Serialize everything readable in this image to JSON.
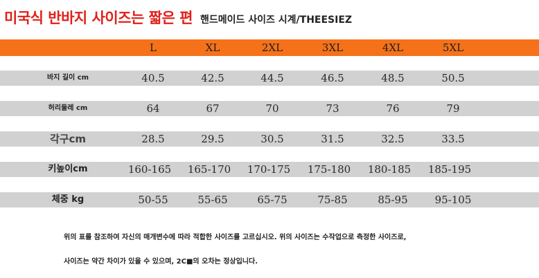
{
  "title": {
    "main": "미국식 반바지 사이즈는 짧은 편",
    "sub": "핸드메이드 사이즈 시계/THEESIEZ"
  },
  "sizes": [
    "L",
    "XL",
    "2XL",
    "3XL",
    "4XL",
    "5XL"
  ],
  "rows": [
    {
      "label": "바지 길이 cm",
      "values": [
        "40.5",
        "42.5",
        "44.5",
        "46.5",
        "48.5",
        "50.5"
      ]
    },
    {
      "label": "허리둘레 cm",
      "values": [
        "64",
        "67",
        "70",
        "73",
        "76",
        "79"
      ]
    },
    {
      "label": "각구cm",
      "values": [
        "28.5",
        "29.5",
        "30.5",
        "31.5",
        "32.5",
        "33.5"
      ]
    },
    {
      "label": "키높이cm",
      "values": [
        "160-165",
        "165-170",
        "170-175",
        "175-180",
        "180-185",
        "185-195"
      ]
    },
    {
      "label": "체중 kg",
      "values": [
        "50-55",
        "55-65",
        "65-75",
        "75-85",
        "85-95",
        "95-105"
      ]
    }
  ],
  "notes": [
    "위의 표를 참조하여 자신의 매개변수에 따라 적합한 사이즈를 고르십시오. 위의 사이즈는 수작업으로 측정한 사이즈로,",
    "사이즈는 약간 차이가 있을 수 있으며, 2C■의 오차는 정상입니다."
  ],
  "colors": {
    "header": "#f5721a",
    "title_red": "#e0201a",
    "row_gray": "#d1d1d1"
  }
}
